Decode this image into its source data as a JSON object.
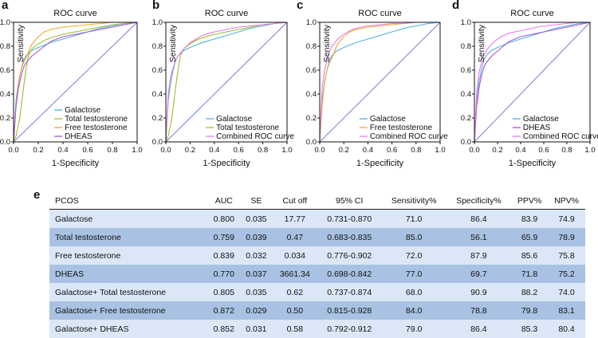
{
  "chart_data": [
    {
      "type": "line",
      "panel": "a",
      "title": "ROC curve",
      "xlabel": "1-Specificity",
      "ylabel": "Sensitivity",
      "xlim": [
        0,
        1
      ],
      "ylim": [
        0,
        1
      ],
      "xticks": [
        "0.0",
        "0.2",
        "0.4",
        "0.6",
        "0.8",
        "1.0"
      ],
      "yticks": [
        "0.0",
        "0.2",
        "0.4",
        "0.6",
        "0.8",
        "1.0"
      ],
      "legend_position": "bottom-right",
      "series": [
        {
          "name": "Galactose",
          "color": "#4fb3d9",
          "x": [
            0,
            0.02,
            0.04,
            0.06,
            0.08,
            0.1,
            0.12,
            0.14,
            0.2,
            0.3,
            0.4,
            0.5,
            0.6,
            0.7,
            0.8,
            0.9,
            1
          ],
          "y": [
            0,
            0.35,
            0.5,
            0.6,
            0.68,
            0.72,
            0.74,
            0.76,
            0.79,
            0.83,
            0.86,
            0.89,
            0.92,
            0.95,
            0.97,
            0.99,
            1
          ]
        },
        {
          "name": "Total testosterone",
          "color": "#9bbf2e",
          "x": [
            0,
            0.02,
            0.05,
            0.08,
            0.1,
            0.12,
            0.15,
            0.2,
            0.25,
            0.3,
            0.4,
            0.5,
            0.6,
            0.7,
            0.8,
            0.9,
            1
          ],
          "y": [
            0,
            0.05,
            0.2,
            0.45,
            0.6,
            0.72,
            0.78,
            0.82,
            0.85,
            0.87,
            0.9,
            0.92,
            0.94,
            0.96,
            0.98,
            0.99,
            1
          ]
        },
        {
          "name": "Free testosterone",
          "color": "#f0a830",
          "x": [
            0,
            0.02,
            0.04,
            0.06,
            0.08,
            0.1,
            0.12,
            0.15,
            0.2,
            0.25,
            0.3,
            0.4,
            0.5,
            0.6,
            0.7,
            0.8,
            0.9,
            1
          ],
          "y": [
            0,
            0.3,
            0.5,
            0.6,
            0.66,
            0.7,
            0.75,
            0.82,
            0.88,
            0.92,
            0.94,
            0.96,
            0.97,
            0.98,
            0.99,
            1,
            1,
            1
          ]
        },
        {
          "name": "DHEAS",
          "color": "#a855d8",
          "x": [
            0,
            0.02,
            0.04,
            0.06,
            0.08,
            0.1,
            0.15,
            0.2,
            0.25,
            0.3,
            0.4,
            0.5,
            0.6,
            0.7,
            0.8,
            0.9,
            1
          ],
          "y": [
            0,
            0.3,
            0.45,
            0.55,
            0.62,
            0.66,
            0.72,
            0.76,
            0.8,
            0.84,
            0.88,
            0.9,
            0.92,
            0.94,
            0.96,
            0.98,
            1
          ]
        }
      ]
    },
    {
      "type": "line",
      "panel": "b",
      "title": "ROC curve",
      "xlabel": "1-Specificity",
      "ylabel": "Sensitivity",
      "xlim": [
        0,
        1
      ],
      "ylim": [
        0,
        1
      ],
      "xticks": [
        "0.0",
        "0.2",
        "0.4",
        "0.6",
        "0.8",
        "1.0"
      ],
      "yticks": [
        "0.0",
        "0.2",
        "0.4",
        "0.6",
        "0.8",
        "1.0"
      ],
      "legend_position": "bottom-right",
      "series": [
        {
          "name": "Galactose",
          "color": "#4fb3d9",
          "x": [
            0,
            0.02,
            0.04,
            0.06,
            0.08,
            0.1,
            0.12,
            0.14,
            0.2,
            0.3,
            0.4,
            0.5,
            0.6,
            0.7,
            0.8,
            0.9,
            1
          ],
          "y": [
            0,
            0.35,
            0.5,
            0.6,
            0.68,
            0.72,
            0.74,
            0.76,
            0.79,
            0.83,
            0.86,
            0.89,
            0.92,
            0.95,
            0.97,
            0.99,
            1
          ]
        },
        {
          "name": "Total testosterone",
          "color": "#9bbf2e",
          "x": [
            0,
            0.02,
            0.05,
            0.08,
            0.1,
            0.12,
            0.15,
            0.2,
            0.25,
            0.3,
            0.4,
            0.5,
            0.6,
            0.7,
            0.8,
            0.9,
            1
          ],
          "y": [
            0,
            0.05,
            0.2,
            0.45,
            0.6,
            0.72,
            0.78,
            0.82,
            0.85,
            0.87,
            0.9,
            0.92,
            0.94,
            0.96,
            0.98,
            0.99,
            1
          ]
        },
        {
          "name": "Combined ROC curve",
          "color": "#e879e8",
          "x": [
            0,
            0.02,
            0.04,
            0.06,
            0.08,
            0.1,
            0.15,
            0.2,
            0.25,
            0.3,
            0.4,
            0.5,
            0.6,
            0.7,
            0.8,
            0.9,
            1
          ],
          "y": [
            0,
            0.4,
            0.55,
            0.62,
            0.68,
            0.72,
            0.78,
            0.83,
            0.86,
            0.89,
            0.92,
            0.94,
            0.96,
            0.97,
            0.98,
            0.99,
            1
          ]
        }
      ]
    },
    {
      "type": "line",
      "panel": "c",
      "title": "ROC curve",
      "xlabel": "1-Specificity",
      "ylabel": "Sensitivity",
      "xlim": [
        0,
        1
      ],
      "ylim": [
        0,
        1
      ],
      "xticks": [
        "0.0",
        "0.2",
        "0.4",
        "0.6",
        "0.8",
        "1.0"
      ],
      "yticks": [
        "0.0",
        "0.2",
        "0.4",
        "0.6",
        "0.8",
        "1.0"
      ],
      "legend_position": "bottom-right",
      "series": [
        {
          "name": "Galactose",
          "color": "#4fb3d9",
          "x": [
            0,
            0.02,
            0.04,
            0.06,
            0.08,
            0.1,
            0.12,
            0.14,
            0.2,
            0.3,
            0.4,
            0.5,
            0.6,
            0.7,
            0.8,
            0.9,
            1
          ],
          "y": [
            0,
            0.35,
            0.5,
            0.6,
            0.68,
            0.72,
            0.74,
            0.76,
            0.79,
            0.83,
            0.86,
            0.89,
            0.92,
            0.95,
            0.97,
            0.99,
            1
          ]
        },
        {
          "name": "Free testosterone",
          "color": "#f0a830",
          "x": [
            0,
            0.02,
            0.04,
            0.06,
            0.08,
            0.1,
            0.12,
            0.15,
            0.2,
            0.25,
            0.3,
            0.4,
            0.5,
            0.6,
            0.7,
            0.8,
            0.9,
            1
          ],
          "y": [
            0,
            0.3,
            0.5,
            0.6,
            0.66,
            0.7,
            0.75,
            0.82,
            0.88,
            0.92,
            0.94,
            0.96,
            0.97,
            0.98,
            0.99,
            1,
            1,
            1
          ]
        },
        {
          "name": "Combined ROC curve",
          "color": "#e879e8",
          "x": [
            0,
            0.02,
            0.04,
            0.06,
            0.08,
            0.1,
            0.15,
            0.2,
            0.25,
            0.3,
            0.4,
            0.5,
            0.6,
            0.7,
            0.8,
            0.9,
            1
          ],
          "y": [
            0,
            0.45,
            0.6,
            0.68,
            0.75,
            0.8,
            0.86,
            0.9,
            0.93,
            0.95,
            0.97,
            0.98,
            0.99,
            0.99,
            1,
            1,
            1
          ]
        }
      ]
    },
    {
      "type": "line",
      "panel": "d",
      "title": "ROC curve",
      "xlabel": "1-Specificity",
      "ylabel": "Sensitivity",
      "xlim": [
        0,
        1
      ],
      "ylim": [
        0,
        1
      ],
      "xticks": [
        "0.0",
        "0.2",
        "0.4",
        "0.6",
        "0.8",
        "1.0"
      ],
      "yticks": [
        "0.0",
        "0.2",
        "0.4",
        "0.6",
        "0.8",
        "1.0"
      ],
      "legend_position": "bottom-right",
      "series": [
        {
          "name": "Galactose",
          "color": "#4fb3d9",
          "x": [
            0,
            0.02,
            0.04,
            0.06,
            0.08,
            0.1,
            0.12,
            0.14,
            0.2,
            0.3,
            0.4,
            0.5,
            0.6,
            0.7,
            0.8,
            0.9,
            1
          ],
          "y": [
            0,
            0.35,
            0.5,
            0.6,
            0.68,
            0.72,
            0.74,
            0.76,
            0.79,
            0.83,
            0.86,
            0.89,
            0.92,
            0.95,
            0.97,
            0.99,
            1
          ]
        },
        {
          "name": "DHEAS",
          "color": "#a855d8",
          "x": [
            0,
            0.02,
            0.04,
            0.06,
            0.08,
            0.1,
            0.15,
            0.2,
            0.25,
            0.3,
            0.4,
            0.5,
            0.6,
            0.7,
            0.8,
            0.9,
            1
          ],
          "y": [
            0,
            0.3,
            0.45,
            0.55,
            0.62,
            0.66,
            0.72,
            0.76,
            0.8,
            0.84,
            0.88,
            0.9,
            0.92,
            0.94,
            0.96,
            0.98,
            1
          ]
        },
        {
          "name": "Combined ROC curve",
          "color": "#e879e8",
          "x": [
            0,
            0.02,
            0.04,
            0.06,
            0.08,
            0.1,
            0.15,
            0.2,
            0.25,
            0.3,
            0.4,
            0.5,
            0.6,
            0.7,
            0.8,
            0.9,
            1
          ],
          "y": [
            0,
            0.42,
            0.58,
            0.66,
            0.72,
            0.76,
            0.82,
            0.86,
            0.89,
            0.91,
            0.93,
            0.95,
            0.97,
            0.98,
            0.99,
            1,
            1
          ]
        }
      ]
    },
    {
      "type": "table",
      "panel": "e",
      "columns": [
        "PCOS",
        "AUC",
        "SE",
        "Cut off",
        "95% CI",
        "Sensitivity%",
        "Specificity%",
        "PPV%",
        "NPV%"
      ],
      "rows": [
        [
          "Galactose",
          "0.800",
          "0.035",
          "17.77",
          "0.731-0.870",
          "71.0",
          "86.4",
          "83.9",
          "74.9"
        ],
        [
          "Total testosterone",
          "0.759",
          "0.039",
          "0.47",
          "0.683-0.835",
          "85.0",
          "56.1",
          "65.9",
          "78.9"
        ],
        [
          "Free testosterone",
          "0.839",
          "0.032",
          "0.034",
          "0.776-0.902",
          "72.0",
          "87.9",
          "85.6",
          "75.8"
        ],
        [
          "DHEAS",
          "0.770",
          "0.037",
          "3661.34",
          "0.698-0.842",
          "77.0",
          "69.7",
          "71.8",
          "75.2"
        ],
        [
          "Galactose+ Total testosterone",
          "0.805",
          "0.035",
          "0.62",
          "0.737-0.874",
          "68.0",
          "90.9",
          "88.2",
          "74.0"
        ],
        [
          "Galactose+ Free testosterone",
          "0.872",
          "0.029",
          "0.50",
          "0.815-0.928",
          "84.0",
          "78.8",
          "79.8",
          "83.1"
        ],
        [
          "Galactose+ DHEAS",
          "0.852",
          "0.031",
          "0.58",
          "0.792-0.912",
          "79.0",
          "86.4",
          "85.3",
          "80.4"
        ]
      ]
    }
  ],
  "diagonal_color": "#7b7bd6"
}
